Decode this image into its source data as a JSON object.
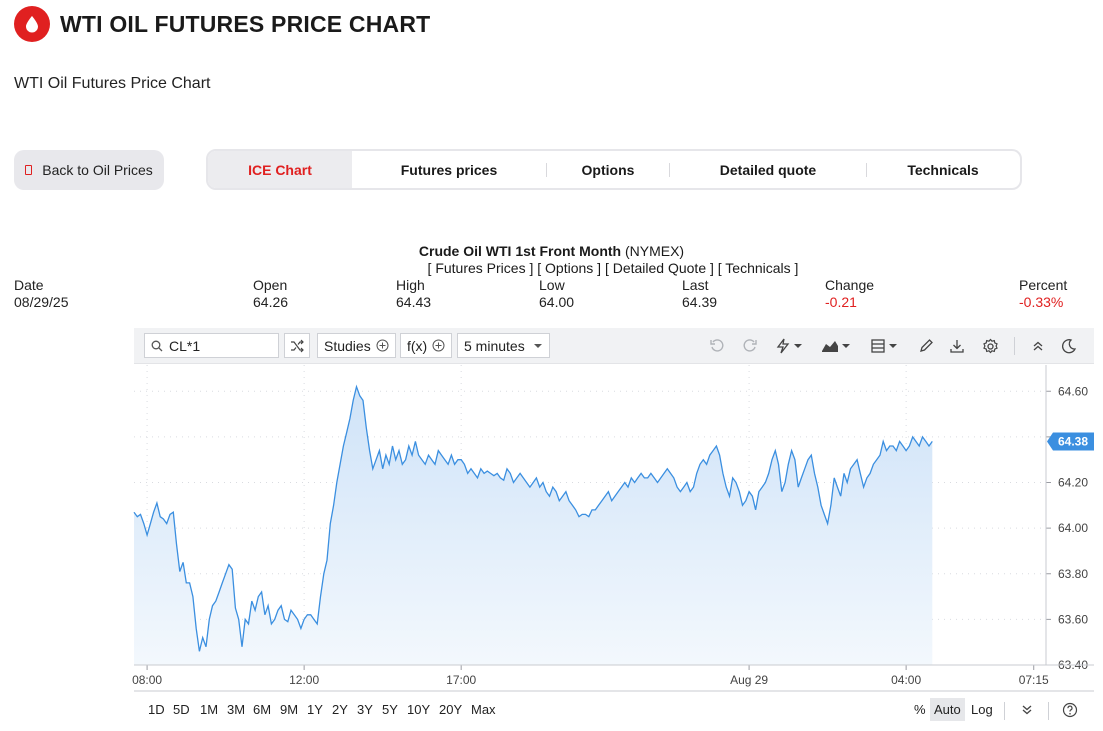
{
  "header": {
    "title": "WTI OIL FUTURES PRICE CHART",
    "subtitle": "WTI Oil Futures Price Chart",
    "logo_icon": "oil-drop-icon"
  },
  "back_button": {
    "label": "Back to Oil Prices"
  },
  "tabs": [
    {
      "label": "ICE Chart",
      "active": true
    },
    {
      "label": "Futures prices",
      "active": false
    },
    {
      "label": "Options",
      "active": false
    },
    {
      "label": "Detailed quote",
      "active": false
    },
    {
      "label": "Technicals",
      "active": false
    }
  ],
  "quote": {
    "title_bold": "Crude Oil WTI 1st Front Month",
    "exchange": "(NYMEX)",
    "links": "[ Futures Prices ] [ Options ] [ Detailed Quote ] [ Technicals ]",
    "stats": [
      {
        "label": "Date",
        "value": "08/29/25",
        "negative": false
      },
      {
        "label": "Open",
        "value": "64.26",
        "negative": false
      },
      {
        "label": "High",
        "value": "64.43",
        "negative": false
      },
      {
        "label": "Low",
        "value": "64.00",
        "negative": false
      },
      {
        "label": "Last",
        "value": "64.39",
        "negative": false
      },
      {
        "label": "Change",
        "value": "-0.21",
        "negative": true
      },
      {
        "label": "Percent",
        "value": "-0.33%",
        "negative": true
      }
    ]
  },
  "toolbar": {
    "symbol": "CL*1",
    "studies_label": "Studies",
    "fx_label": "f(x)",
    "interval_label": "5 minutes"
  },
  "colors": {
    "accent": "#e02020",
    "line": "#3b8fe0",
    "fill_top": "#cfe3f8",
    "fill_bottom": "#f3f8fd"
  },
  "chart_data": {
    "type": "area",
    "ylim": [
      63.4,
      64.68
    ],
    "y_ticks": [
      "64.60",
      "64.40",
      "64.20",
      "64.00",
      "63.80",
      "63.60",
      "63.40"
    ],
    "x_ticks": [
      {
        "label": "08:00",
        "x": 4
      },
      {
        "label": "12:00",
        "x": 52
      },
      {
        "label": "17:00",
        "x": 100
      },
      {
        "label": "Aug 29",
        "x": 188
      },
      {
        "label": "04:00",
        "x": 236
      },
      {
        "label": "07:15",
        "x": 275
      }
    ],
    "x_range": [
      0,
      276
    ],
    "last_price_label": "64.38",
    "series": [
      {
        "values": [
          64.07,
          64.05,
          64.06,
          64.02,
          63.97,
          64.02,
          64.07,
          64.11,
          64.05,
          64.04,
          64.02,
          64.06,
          64.07,
          63.93,
          63.81,
          63.85,
          63.76,
          63.76,
          63.7,
          63.56,
          63.46,
          63.52,
          63.48,
          63.6,
          63.66,
          63.68,
          63.72,
          63.76,
          63.8,
          63.84,
          63.82,
          63.65,
          63.6,
          63.48,
          63.6,
          63.58,
          63.68,
          63.64,
          63.7,
          63.72,
          63.62,
          63.66,
          63.58,
          63.6,
          63.64,
          63.66,
          63.6,
          63.59,
          63.64,
          63.62,
          63.6,
          63.56,
          63.6,
          63.62,
          63.62,
          63.6,
          63.58,
          63.7,
          63.8,
          63.86,
          64.02,
          64.1,
          64.2,
          64.28,
          64.36,
          64.42,
          64.48,
          64.56,
          64.62,
          64.58,
          64.56,
          64.44,
          64.34,
          64.26,
          64.3,
          64.34,
          64.26,
          64.32,
          64.28,
          64.36,
          64.3,
          64.34,
          64.28,
          64.3,
          64.36,
          64.32,
          64.38,
          64.32,
          64.3,
          64.28,
          64.32,
          64.3,
          64.28,
          64.34,
          64.32,
          64.3,
          64.28,
          64.32,
          64.28,
          64.3,
          64.3,
          64.28,
          64.24,
          64.26,
          64.24,
          64.22,
          64.26,
          64.24,
          64.25,
          64.24,
          64.23,
          64.24,
          64.22,
          64.21,
          64.26,
          64.24,
          64.2,
          64.22,
          64.24,
          64.22,
          64.2,
          64.18,
          64.2,
          64.22,
          64.18,
          64.2,
          64.16,
          64.14,
          64.18,
          64.16,
          64.12,
          64.14,
          64.16,
          64.12,
          64.1,
          64.08,
          64.05,
          64.06,
          64.06,
          64.05,
          64.08,
          64.08,
          64.1,
          64.12,
          64.14,
          64.16,
          64.12,
          64.14,
          64.16,
          64.18,
          64.2,
          64.18,
          64.22,
          64.2,
          64.22,
          64.24,
          64.22,
          64.22,
          64.24,
          64.22,
          64.2,
          64.22,
          64.24,
          64.26,
          64.24,
          64.22,
          64.18,
          64.16,
          64.18,
          64.2,
          64.16,
          64.18,
          64.24,
          64.28,
          64.3,
          64.28,
          64.32,
          64.34,
          64.36,
          64.32,
          64.24,
          64.18,
          64.14,
          64.22,
          64.2,
          64.16,
          64.1,
          64.12,
          64.16,
          64.14,
          64.08,
          64.16,
          64.18,
          64.2,
          64.24,
          64.3,
          64.34,
          64.28,
          64.16,
          64.2,
          64.28,
          64.34,
          64.3,
          64.18,
          64.22,
          64.26,
          64.3,
          64.32,
          64.24,
          64.18,
          64.1,
          64.06,
          64.02,
          64.1,
          64.22,
          64.18,
          64.14,
          64.24,
          64.2,
          64.26,
          64.28,
          64.3,
          64.24,
          64.18,
          64.22,
          64.24,
          64.28,
          64.3,
          64.32,
          64.38,
          64.34,
          64.36,
          64.36,
          64.34,
          64.38,
          64.36,
          64.34,
          64.36,
          64.4,
          64.38,
          64.36,
          64.4,
          64.38,
          64.36,
          64.38
        ]
      }
    ]
  },
  "bottom_bar": {
    "ranges": [
      "1D",
      "5D",
      "1M",
      "3M",
      "6M",
      "9M",
      "1Y",
      "2Y",
      "3Y",
      "5Y",
      "10Y",
      "20Y",
      "Max"
    ],
    "percent_label": "%",
    "auto_label": "Auto",
    "log_label": "Log"
  }
}
